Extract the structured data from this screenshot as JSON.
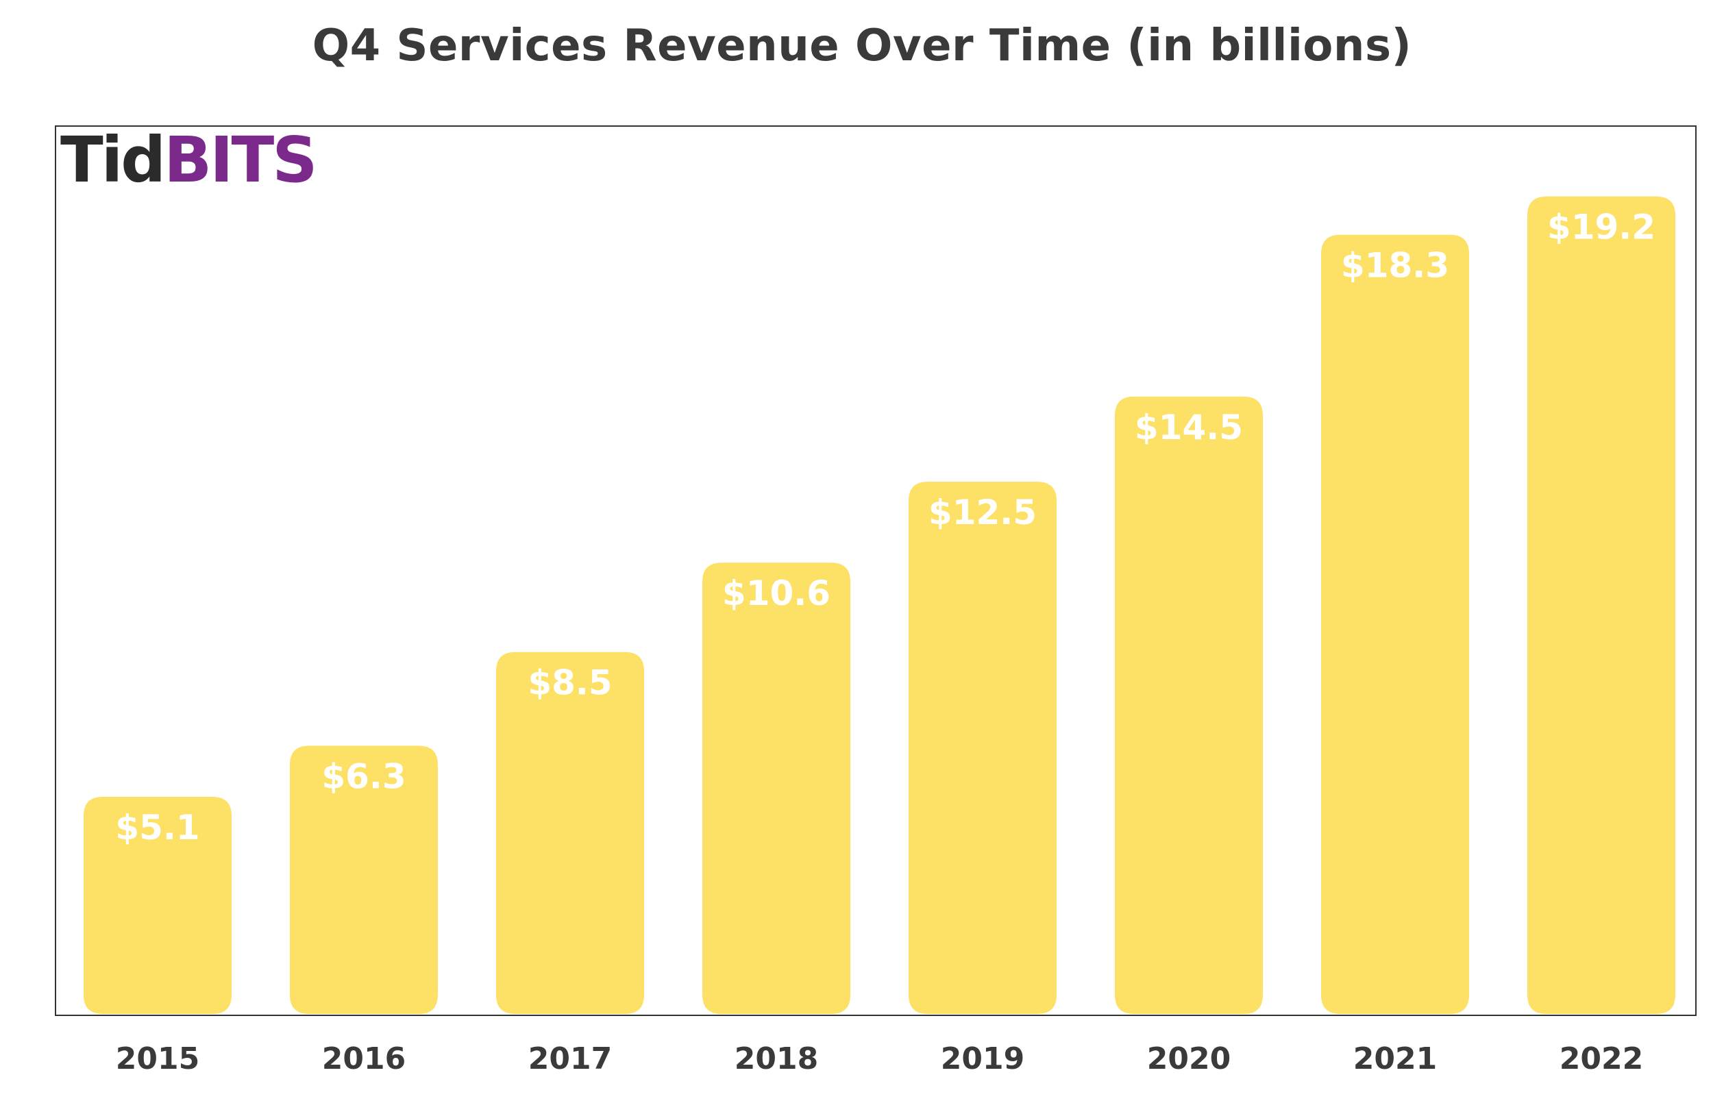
{
  "logo": {
    "part1": "Tid",
    "part2": "BITS",
    "color_dark": "#2b2b2b",
    "color_accent": "#7b2a8c"
  },
  "colors": {
    "bar": "#fde166",
    "bar_label": "#ffffff",
    "text": "#3a3a3a",
    "frame": "#333333"
  },
  "chart_data": {
    "type": "bar",
    "title": "Q4 Services Revenue Over Time (in billions)",
    "xlabel": "",
    "ylabel": "",
    "categories": [
      "2015",
      "2016",
      "2017",
      "2018",
      "2019",
      "2020",
      "2021",
      "2022"
    ],
    "values": [
      5.1,
      6.3,
      8.5,
      10.6,
      12.5,
      14.5,
      18.3,
      19.2
    ],
    "value_labels": [
      "$5.1",
      "$6.3",
      "$8.5",
      "$10.6",
      "$12.5",
      "$14.5",
      "$18.3",
      "$19.2"
    ],
    "ylim": [
      0,
      20
    ],
    "grid": false,
    "legend": "none"
  }
}
